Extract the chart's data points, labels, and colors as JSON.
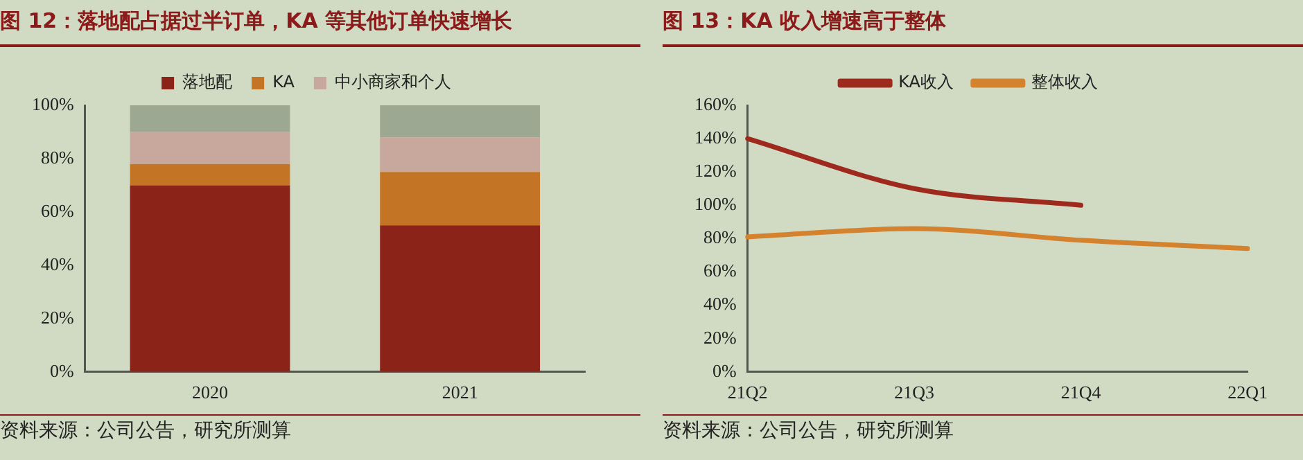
{
  "chart_data": [
    {
      "type": "bar",
      "stacked": true,
      "title": "图 12：落地配占据过半订单，KA 等其他订单快速增长",
      "categories": [
        "2020",
        "2021"
      ],
      "series": [
        {
          "name": "落地配",
          "color": "#8b2318",
          "values": [
            70,
            55
          ]
        },
        {
          "name": "KA",
          "color": "#c47425",
          "values": [
            8,
            20
          ]
        },
        {
          "name": "中小商家和个人",
          "color": "#c8a89d",
          "values": [
            12,
            13
          ]
        },
        {
          "color": "#9da892",
          "values": [
            10,
            12
          ]
        }
      ],
      "ylim": [
        0,
        100
      ],
      "yticks": [
        {
          "value": 0,
          "label": "0%"
        },
        {
          "value": 20,
          "label": "20%"
        },
        {
          "value": 40,
          "label": "40%"
        },
        {
          "value": 60,
          "label": "60%"
        },
        {
          "value": 80,
          "label": "80%"
        },
        {
          "value": 100,
          "label": "100%"
        }
      ],
      "grid": false,
      "legend": "top",
      "annotations": [
        "资料来源：公司公告，研究所测算"
      ]
    },
    {
      "type": "line",
      "title": "图 13：KA 收入增速高于整体",
      "categories": [
        "21Q2",
        "21Q3",
        "21Q4",
        "22Q1"
      ],
      "series": [
        {
          "name": "KA收入",
          "color": "#9e2a1e",
          "values": [
            140,
            110,
            100,
            null
          ]
        },
        {
          "name": "整体收入",
          "color": "#d4822e",
          "values": [
            81,
            86,
            79,
            74
          ]
        }
      ],
      "ylim": [
        0,
        160
      ],
      "yticks": [
        {
          "value": 0,
          "label": "0%"
        },
        {
          "value": 20,
          "label": "20%"
        },
        {
          "value": 40,
          "label": "40%"
        },
        {
          "value": 60,
          "label": "60%"
        },
        {
          "value": 80,
          "label": "80%"
        },
        {
          "value": 100,
          "label": "100%"
        },
        {
          "value": 120,
          "label": "120%"
        },
        {
          "value": 140,
          "label": "140%"
        },
        {
          "value": 160,
          "label": "160%"
        }
      ],
      "grid": false,
      "legend": "top",
      "marker": "none",
      "annotations": [
        "资料来源：公司公告，研究所测算"
      ]
    }
  ]
}
